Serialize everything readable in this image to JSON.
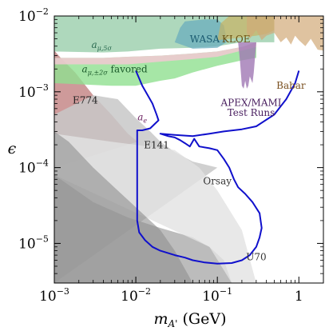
{
  "chart_data": {
    "type": "area",
    "xlabel_main": "m",
    "xlabel_sub": "A'",
    "xlabel_unit": " (GeV)",
    "ylabel": "ϵ",
    "x_scale": "log",
    "y_scale": "log",
    "xlim": [
      0.001,
      2.0
    ],
    "ylim": [
      3e-06,
      0.01
    ],
    "x_ticks": [
      {
        "value": 0.001,
        "base": "10",
        "exp": "−3"
      },
      {
        "value": 0.01,
        "base": "10",
        "exp": "−2"
      },
      {
        "value": 0.1,
        "base": "10",
        "exp": "−1"
      },
      {
        "value": 1.0,
        "base": "1",
        "exp": ""
      }
    ],
    "y_ticks": [
      {
        "value": 1e-05,
        "base": "10",
        "exp": "−5"
      },
      {
        "value": 0.0001,
        "base": "10",
        "exp": "−4"
      },
      {
        "value": 0.001,
        "base": "10",
        "exp": "−3"
      },
      {
        "value": 0.01,
        "base": "10",
        "exp": "−2"
      }
    ],
    "grid": false,
    "regions": [
      {
        "name": "E774",
        "fill": "#b46464",
        "opacity": 0.65,
        "points": [
          [
            0.001,
            0.0035
          ],
          [
            0.0012,
            0.0028
          ],
          [
            0.0018,
            0.0018
          ],
          [
            0.003,
            0.0009
          ],
          [
            0.005,
            0.0005
          ],
          [
            0.008,
            0.00028
          ],
          [
            0.0105,
            0.00022
          ],
          [
            0.001,
            0.0001
          ]
        ]
      },
      {
        "name": "E141",
        "fill": "#c8c8c8",
        "opacity": 0.85,
        "points": [
          [
            0.001,
            0.0005
          ],
          [
            0.003,
            0.0009
          ],
          [
            0.006,
            0.0008
          ],
          [
            0.01,
            0.00045
          ],
          [
            0.015,
            0.0003
          ],
          [
            0.02,
            0.00022
          ],
          [
            0.03,
            0.00016
          ],
          [
            0.05,
            0.00012
          ],
          [
            0.1,
            0.0001
          ],
          [
            0.001,
            3e-06
          ]
        ]
      },
      {
        "name": "Orsay",
        "fill": "#a6a6a6",
        "opacity": 0.75,
        "points": [
          [
            0.001,
            8e-05
          ],
          [
            0.003,
            3.5e-05
          ],
          [
            0.008,
            2.2e-05
          ],
          [
            0.02,
            1.6e-05
          ],
          [
            0.05,
            1.2e-05
          ],
          [
            0.08,
            9e-06
          ],
          [
            0.12,
            6e-06
          ],
          [
            0.15,
            3e-06
          ],
          [
            0.001,
            3e-06
          ]
        ]
      },
      {
        "name": "Orsay-light",
        "fill": "#e2e2e2",
        "opacity": 0.8,
        "points": [
          [
            0.001,
            0.00028
          ],
          [
            0.005,
            0.00022
          ],
          [
            0.01,
            0.0002
          ],
          [
            0.03,
            0.00017
          ],
          [
            0.06,
            0.0001
          ],
          [
            0.1,
            5e-05
          ],
          [
            0.2,
            1.5e-05
          ],
          [
            0.3,
            3e-06
          ],
          [
            0.15,
            3e-06
          ],
          [
            0.08,
            9e-06
          ],
          [
            0.001,
            8e-05
          ]
        ]
      },
      {
        "name": "a_e",
        "fill": "#8f8f8f",
        "opacity": 0.6,
        "points": [
          [
            0.001,
            0.0003
          ],
          [
            0.0015,
            0.00022
          ],
          [
            0.003,
            0.0001
          ],
          [
            0.006,
            5e-05
          ],
          [
            0.01,
            3e-05
          ],
          [
            0.02,
            1.5e-05
          ],
          [
            0.03,
            8e-06
          ],
          [
            0.05,
            3e-06
          ],
          [
            0.001,
            3e-06
          ]
        ]
      },
      {
        "name": "a_mu_5sigma",
        "fill": "#8cc8a0",
        "opacity": 0.7,
        "points": [
          [
            0.001,
            0.01
          ],
          [
            0.5,
            0.01
          ],
          [
            0.5,
            0.0045
          ],
          [
            0.2,
            0.0045
          ],
          [
            0.1,
            0.004
          ],
          [
            0.05,
            0.0038
          ],
          [
            0.02,
            0.0037
          ],
          [
            0.008,
            0.0034
          ],
          [
            0.004,
            0.0033
          ],
          [
            0.001,
            0.0034
          ]
        ]
      },
      {
        "name": "a_mu_favored",
        "fill": "#90e090",
        "opacity": 0.8,
        "points": [
          [
            0.001,
            0.0028
          ],
          [
            0.004,
            0.0028
          ],
          [
            0.008,
            0.0029
          ],
          [
            0.02,
            0.003
          ],
          [
            0.05,
            0.0032
          ],
          [
            0.1,
            0.0034
          ],
          [
            0.2,
            0.0039
          ],
          [
            0.3,
            0.0045
          ],
          [
            0.3,
            0.0028
          ],
          [
            0.2,
            0.0026
          ],
          [
            0.1,
            0.0022
          ],
          [
            0.05,
            0.0018
          ],
          [
            0.03,
            0.0015
          ],
          [
            0.02,
            0.0014
          ],
          [
            0.01,
            0.0012
          ],
          [
            0.005,
            0.0012
          ],
          [
            0.001,
            0.0013
          ]
        ]
      },
      {
        "name": "a_mu_pink_band",
        "fill": "#f2c8d2",
        "opacity": 0.85,
        "points": [
          [
            0.001,
            0.0028
          ],
          [
            0.004,
            0.0028
          ],
          [
            0.008,
            0.0029
          ],
          [
            0.02,
            0.003
          ],
          [
            0.05,
            0.0032
          ],
          [
            0.1,
            0.0034
          ],
          [
            0.2,
            0.0039
          ],
          [
            0.3,
            0.0045
          ],
          [
            0.3,
            0.0039
          ],
          [
            0.2,
            0.0035
          ],
          [
            0.1,
            0.0029
          ],
          [
            0.05,
            0.0027
          ],
          [
            0.02,
            0.0025
          ],
          [
            0.008,
            0.0023
          ],
          [
            0.004,
            0.0023
          ],
          [
            0.001,
            0.0023
          ]
        ]
      },
      {
        "name": "WASA",
        "fill": "#6aaebe",
        "opacity": 0.75,
        "points": [
          [
            0.03,
            0.0045
          ],
          [
            0.035,
            0.007
          ],
          [
            0.04,
            0.0085
          ],
          [
            0.07,
            0.009
          ],
          [
            0.1,
            0.009
          ],
          [
            0.12,
            0.0075
          ],
          [
            0.13,
            0.005
          ],
          [
            0.13,
            0.0045
          ],
          [
            0.1,
            0.0038
          ],
          [
            0.05,
            0.0037
          ]
        ]
      },
      {
        "name": "KLOE",
        "fill": "#c8b464",
        "opacity": 0.7,
        "points": [
          [
            0.1,
            0.0048
          ],
          [
            0.11,
            0.008
          ],
          [
            0.14,
            0.01
          ],
          [
            0.5,
            0.01
          ],
          [
            0.5,
            0.0065
          ],
          [
            0.4,
            0.0058
          ],
          [
            0.3,
            0.0055
          ],
          [
            0.2,
            0.0052
          ]
        ]
      },
      {
        "name": "Babar",
        "fill": "#d2aa78",
        "opacity": 0.7,
        "points": [
          [
            0.23,
            0.006
          ],
          [
            0.25,
            0.005
          ],
          [
            0.3,
            0.0065
          ],
          [
            0.35,
            0.0048
          ],
          [
            0.4,
            0.0055
          ],
          [
            0.5,
            0.006
          ],
          [
            0.6,
            0.0045
          ],
          [
            0.7,
            0.0052
          ],
          [
            0.8,
            0.0042
          ],
          [
            0.9,
            0.0055
          ],
          [
            1.0,
            0.0048
          ],
          [
            1.2,
            0.004
          ],
          [
            1.4,
            0.005
          ],
          [
            1.7,
            0.0036
          ],
          [
            2.0,
            0.0035
          ],
          [
            2.0,
            0.01
          ],
          [
            0.23,
            0.01
          ]
        ]
      },
      {
        "name": "APEX/MAMI",
        "fill": "#a078b4",
        "opacity": 0.8,
        "points": [
          [
            0.18,
            0.0045
          ],
          [
            0.19,
            0.0025
          ],
          [
            0.2,
            0.0012
          ],
          [
            0.21,
            0.0011
          ],
          [
            0.22,
            0.0014
          ],
          [
            0.23,
            0.0011
          ],
          [
            0.24,
            0.0012
          ],
          [
            0.25,
            0.0016
          ],
          [
            0.27,
            0.0013
          ],
          [
            0.28,
            0.0018
          ],
          [
            0.3,
            0.0045
          ]
        ]
      }
    ],
    "reach_curve": {
      "name": "HPS reach",
      "color": "#1010cc",
      "points": [
        [
          0.01,
          0.0019
        ],
        [
          0.011,
          0.0015
        ],
        [
          0.012,
          0.0012
        ],
        [
          0.014,
          0.0009
        ],
        [
          0.016,
          0.0007
        ],
        [
          0.018,
          0.0005
        ],
        [
          0.019,
          0.00042
        ],
        [
          0.015,
          0.00033
        ],
        [
          0.012,
          0.00031
        ],
        [
          0.0104,
          0.00031
        ],
        [
          0.0104,
          2e-05
        ],
        [
          0.011,
          1.4e-05
        ],
        [
          0.013,
          1.1e-05
        ],
        [
          0.016,
          9e-06
        ],
        [
          0.02,
          8e-06
        ],
        [
          0.03,
          7e-06
        ],
        [
          0.04,
          6.5e-06
        ],
        [
          0.05,
          6e-06
        ],
        [
          0.07,
          5.6e-06
        ],
        [
          0.1,
          5.4e-06
        ],
        [
          0.15,
          5.5e-06
        ],
        [
          0.2,
          6e-06
        ],
        [
          0.25,
          7e-06
        ],
        [
          0.3,
          9e-06
        ],
        [
          0.33,
          1.2e-05
        ],
        [
          0.35,
          1.6e-05
        ],
        [
          0.33,
          2.5e-05
        ],
        [
          0.27,
          3.5e-05
        ],
        [
          0.22,
          4.5e-05
        ],
        [
          0.18,
          5.5e-05
        ],
        [
          0.16,
          7e-05
        ],
        [
          0.14,
          0.0001
        ],
        [
          0.12,
          0.00013
        ],
        [
          0.1,
          0.00017
        ],
        [
          0.08,
          0.00018
        ],
        [
          0.06,
          0.00019
        ],
        [
          0.052,
          0.00024
        ],
        [
          0.046,
          0.00019
        ],
        [
          0.04,
          0.00021
        ],
        [
          0.035,
          0.00023
        ],
        [
          0.03,
          0.00025
        ],
        [
          0.025,
          0.00026
        ],
        [
          0.02,
          0.00028
        ],
        [
          0.03,
          0.00027
        ],
        [
          0.05,
          0.00026
        ],
        [
          0.08,
          0.00028
        ],
        [
          0.12,
          0.0003
        ],
        [
          0.2,
          0.00032
        ],
        [
          0.3,
          0.00035
        ],
        [
          0.5,
          0.0005
        ],
        [
          0.7,
          0.0008
        ],
        [
          0.9,
          0.0013
        ],
        [
          1.0,
          0.0019
        ]
      ]
    },
    "annotations": {
      "a_mu_5sigma": {
        "main": "a",
        "sub": "μ,5σ",
        "x": 0.0038,
        "y": 0.0038,
        "color": "#2a6a50"
      },
      "a_mu_favored": {
        "main": "a",
        "sub": "μ,±2σ",
        "suffix": " favored",
        "x": 0.0055,
        "y": 0.0018,
        "color": "#1a5a2a"
      },
      "WASA": {
        "text": "WASA",
        "x": 0.07,
        "y": 0.0045,
        "color": "#1a5a70"
      },
      "KLOE": {
        "text": "KLOE",
        "x": 0.17,
        "y": 0.0045,
        "color": "#6a5010"
      },
      "APEX/MAMI": {
        "text": "APEX/MAMI",
        "x": 0.26,
        "y": 0.00065,
        "color": "#4a2060"
      },
      "Test Runs": {
        "text": "Test Runs",
        "x": 0.26,
        "y": 0.00048,
        "color": "#4a2060"
      },
      "Babar": {
        "text": "Babar",
        "x": 0.8,
        "y": 0.0011,
        "color": "#7a5020"
      },
      "E774": {
        "text": "E774",
        "x": 0.0024,
        "y": 0.0007,
        "color": "#222222"
      },
      "E141": {
        "text": "E141",
        "x": 0.018,
        "y": 0.00018,
        "color": "#222222"
      },
      "Orsay": {
        "text": "Orsay",
        "x": 0.1,
        "y": 6e-05,
        "color": "#333333"
      },
      "U70": {
        "text": "U70",
        "x": 0.3,
        "y": 6e-06,
        "color": "#333333"
      },
      "a_e": {
        "main": "a",
        "sub": "e",
        "x": 0.012,
        "y": 0.00042,
        "color": "#6a2060"
      }
    }
  }
}
